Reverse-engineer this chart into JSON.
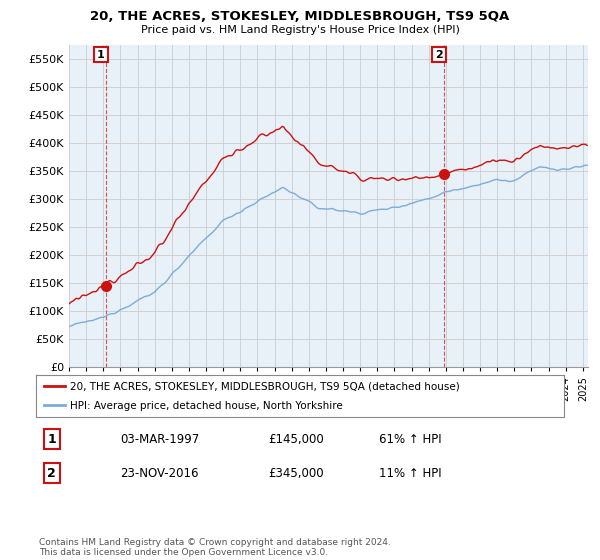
{
  "title": "20, THE ACRES, STOKESLEY, MIDDLESBROUGH, TS9 5QA",
  "subtitle": "Price paid vs. HM Land Registry's House Price Index (HPI)",
  "legend_line1": "20, THE ACRES, STOKESLEY, MIDDLESBROUGH, TS9 5QA (detached house)",
  "legend_line2": "HPI: Average price, detached house, North Yorkshire",
  "annotation1_date": "03-MAR-1997",
  "annotation1_price": "£145,000",
  "annotation1_pct": "61% ↑ HPI",
  "annotation2_date": "23-NOV-2016",
  "annotation2_price": "£345,000",
  "annotation2_pct": "11% ↑ HPI",
  "footer": "Contains HM Land Registry data © Crown copyright and database right 2024.\nThis data is licensed under the Open Government Licence v3.0.",
  "hpi_color": "#7aaddb",
  "price_color": "#cc1111",
  "annotation_box_color": "#cc1111",
  "grid_color": "#cccccc",
  "bg_color": "#e8f0f8",
  "ylim": [
    0,
    575000
  ],
  "yticks": [
    0,
    50000,
    100000,
    150000,
    200000,
    250000,
    300000,
    350000,
    400000,
    450000,
    500000,
    550000
  ],
  "sale1_x": 1997.17,
  "sale1_y": 145000,
  "sale2_x": 2016.9,
  "sale2_y": 345000,
  "xmin": 1995.0,
  "xmax": 2025.3
}
